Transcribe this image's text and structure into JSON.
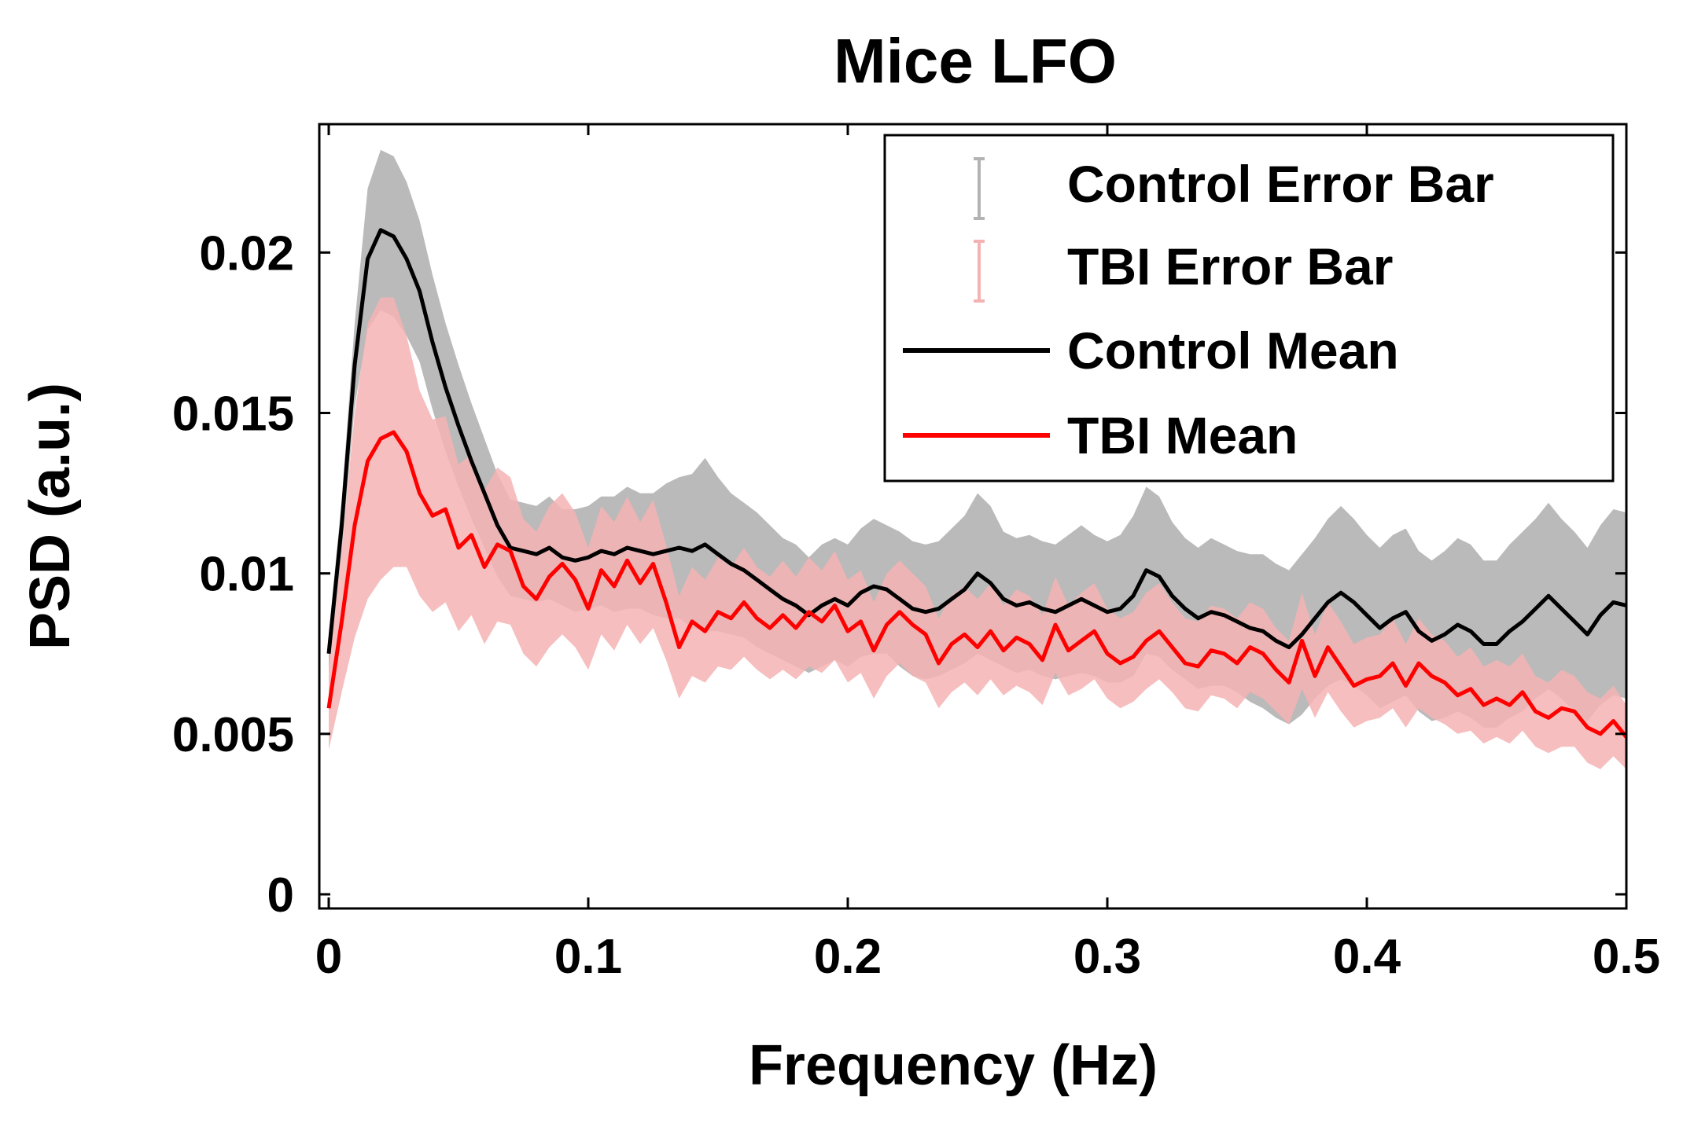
{
  "chart_data": {
    "type": "line",
    "title": "Mice LFO",
    "xlabel": "Frequency (Hz)",
    "ylabel": "PSD (a.u.)",
    "xlim": [
      0,
      0.5
    ],
    "ylim": [
      0,
      0.024
    ],
    "xticks": [
      {
        "value": 0,
        "label": "0"
      },
      {
        "value": 0.1,
        "label": "0.1"
      },
      {
        "value": 0.2,
        "label": "0.2"
      },
      {
        "value": 0.3,
        "label": "0.3"
      },
      {
        "value": 0.4,
        "label": "0.4"
      },
      {
        "value": 0.5,
        "label": "0.5"
      }
    ],
    "yticks": [
      {
        "value": 0,
        "label": "0"
      },
      {
        "value": 0.005,
        "label": "0.005"
      },
      {
        "value": 0.01,
        "label": "0.01"
      },
      {
        "value": 0.015,
        "label": "0.015"
      },
      {
        "value": 0.02,
        "label": "0.02"
      }
    ],
    "grid": false,
    "legend_position": "top-right",
    "legend": [
      {
        "label": "Control Error Bar",
        "kind": "errorbar",
        "color": "#b3b3b3"
      },
      {
        "label": "TBI Error Bar",
        "kind": "errorbar",
        "color": "#f4b3b3"
      },
      {
        "label": "Control Mean",
        "kind": "line",
        "color": "#000000"
      },
      {
        "label": "TBI Mean",
        "kind": "line",
        "color": "#ff0000"
      }
    ],
    "series": [
      {
        "name": "Control Mean",
        "color": "#000000",
        "band_color": "#b3b3b3",
        "x": [
          0,
          0.005,
          0.01,
          0.015,
          0.02,
          0.025,
          0.03,
          0.035,
          0.04,
          0.045,
          0.05,
          0.055,
          0.06,
          0.065,
          0.07,
          0.075,
          0.08,
          0.085,
          0.09,
          0.095,
          0.1,
          0.105,
          0.11,
          0.115,
          0.12,
          0.125,
          0.13,
          0.135,
          0.14,
          0.145,
          0.15,
          0.155,
          0.16,
          0.165,
          0.17,
          0.175,
          0.18,
          0.185,
          0.19,
          0.195,
          0.2,
          0.205,
          0.21,
          0.215,
          0.22,
          0.225,
          0.23,
          0.235,
          0.24,
          0.245,
          0.25,
          0.255,
          0.26,
          0.265,
          0.27,
          0.275,
          0.28,
          0.285,
          0.29,
          0.295,
          0.3,
          0.305,
          0.31,
          0.315,
          0.32,
          0.325,
          0.33,
          0.335,
          0.34,
          0.345,
          0.35,
          0.355,
          0.36,
          0.365,
          0.37,
          0.375,
          0.38,
          0.385,
          0.39,
          0.395,
          0.4,
          0.405,
          0.41,
          0.415,
          0.42,
          0.425,
          0.43,
          0.435,
          0.44,
          0.445,
          0.45,
          0.455,
          0.46,
          0.465,
          0.47,
          0.475,
          0.48,
          0.485,
          0.49,
          0.495,
          0.5
        ],
        "y": [
          0.0075,
          0.0115,
          0.0165,
          0.0198,
          0.0207,
          0.0205,
          0.0198,
          0.0188,
          0.0172,
          0.0158,
          0.0146,
          0.0135,
          0.0125,
          0.0115,
          0.0108,
          0.0107,
          0.0106,
          0.0108,
          0.0105,
          0.0104,
          0.0105,
          0.0107,
          0.0106,
          0.0108,
          0.0107,
          0.0106,
          0.0107,
          0.0108,
          0.0107,
          0.0109,
          0.0106,
          0.0103,
          0.0101,
          0.0098,
          0.0095,
          0.0092,
          0.009,
          0.0087,
          0.009,
          0.0092,
          0.009,
          0.0094,
          0.0096,
          0.0095,
          0.0092,
          0.0089,
          0.0088,
          0.0089,
          0.0092,
          0.0095,
          0.01,
          0.0097,
          0.0092,
          0.009,
          0.0091,
          0.0089,
          0.0088,
          0.009,
          0.0092,
          0.009,
          0.0088,
          0.0089,
          0.0093,
          0.0101,
          0.0099,
          0.0093,
          0.0089,
          0.0086,
          0.0088,
          0.0087,
          0.0085,
          0.0083,
          0.0082,
          0.0079,
          0.0077,
          0.0081,
          0.0086,
          0.0091,
          0.0094,
          0.0091,
          0.0087,
          0.0083,
          0.0086,
          0.0088,
          0.0082,
          0.0079,
          0.0081,
          0.0084,
          0.0082,
          0.0078,
          0.0078,
          0.0082,
          0.0085,
          0.0089,
          0.0093,
          0.0089,
          0.0085,
          0.0081,
          0.0087,
          0.0091,
          0.009
        ],
        "err": [
          0.0006,
          0.0008,
          0.0013,
          0.0022,
          0.0025,
          0.0025,
          0.0024,
          0.0022,
          0.0021,
          0.002,
          0.0019,
          0.0018,
          0.0017,
          0.0016,
          0.0015,
          0.0015,
          0.0015,
          0.0016,
          0.0015,
          0.0016,
          0.0016,
          0.0017,
          0.0018,
          0.0019,
          0.0018,
          0.0019,
          0.0021,
          0.0022,
          0.0024,
          0.0027,
          0.0024,
          0.0022,
          0.0021,
          0.0021,
          0.002,
          0.0019,
          0.0019,
          0.0018,
          0.0019,
          0.0019,
          0.0019,
          0.002,
          0.0021,
          0.002,
          0.0021,
          0.0021,
          0.0021,
          0.0021,
          0.0022,
          0.0023,
          0.0025,
          0.0024,
          0.0021,
          0.0021,
          0.0021,
          0.0021,
          0.0021,
          0.0022,
          0.0023,
          0.0022,
          0.0022,
          0.0023,
          0.0025,
          0.0026,
          0.0025,
          0.0023,
          0.0022,
          0.0022,
          0.0023,
          0.0022,
          0.0022,
          0.0023,
          0.0024,
          0.0024,
          0.0024,
          0.0025,
          0.0025,
          0.0026,
          0.0027,
          0.0026,
          0.0025,
          0.0025,
          0.0026,
          0.0026,
          0.0025,
          0.0025,
          0.0026,
          0.0027,
          0.0027,
          0.0026,
          0.0026,
          0.0027,
          0.0028,
          0.0028,
          0.0029,
          0.0028,
          0.0028,
          0.0027,
          0.0028,
          0.0029,
          0.0029
        ]
      },
      {
        "name": "TBI Mean",
        "color": "#ff0000",
        "band_color": "#f4b3b3",
        "x": [
          0,
          0.005,
          0.01,
          0.015,
          0.02,
          0.025,
          0.03,
          0.035,
          0.04,
          0.045,
          0.05,
          0.055,
          0.06,
          0.065,
          0.07,
          0.075,
          0.08,
          0.085,
          0.09,
          0.095,
          0.1,
          0.105,
          0.11,
          0.115,
          0.12,
          0.125,
          0.13,
          0.135,
          0.14,
          0.145,
          0.15,
          0.155,
          0.16,
          0.165,
          0.17,
          0.175,
          0.18,
          0.185,
          0.19,
          0.195,
          0.2,
          0.205,
          0.21,
          0.215,
          0.22,
          0.225,
          0.23,
          0.235,
          0.24,
          0.245,
          0.25,
          0.255,
          0.26,
          0.265,
          0.27,
          0.275,
          0.28,
          0.285,
          0.29,
          0.295,
          0.3,
          0.305,
          0.31,
          0.315,
          0.32,
          0.325,
          0.33,
          0.335,
          0.34,
          0.345,
          0.35,
          0.355,
          0.36,
          0.365,
          0.37,
          0.375,
          0.38,
          0.385,
          0.39,
          0.395,
          0.4,
          0.405,
          0.41,
          0.415,
          0.42,
          0.425,
          0.43,
          0.435,
          0.44,
          0.445,
          0.45,
          0.455,
          0.46,
          0.465,
          0.47,
          0.475,
          0.48,
          0.485,
          0.49,
          0.495,
          0.5
        ],
        "y": [
          0.0058,
          0.0085,
          0.0115,
          0.0135,
          0.0142,
          0.0144,
          0.0138,
          0.0125,
          0.0118,
          0.012,
          0.0108,
          0.0112,
          0.0102,
          0.0109,
          0.0107,
          0.0096,
          0.0092,
          0.0099,
          0.0103,
          0.0098,
          0.0089,
          0.0101,
          0.0096,
          0.0104,
          0.0097,
          0.0103,
          0.0091,
          0.0077,
          0.0085,
          0.0082,
          0.0088,
          0.0086,
          0.0091,
          0.0086,
          0.0083,
          0.0087,
          0.0083,
          0.0088,
          0.0085,
          0.009,
          0.0082,
          0.0085,
          0.0076,
          0.0084,
          0.0088,
          0.0084,
          0.0081,
          0.0072,
          0.0078,
          0.0081,
          0.0077,
          0.0082,
          0.0076,
          0.008,
          0.0078,
          0.0073,
          0.0084,
          0.0076,
          0.0079,
          0.0082,
          0.0075,
          0.0072,
          0.0074,
          0.0079,
          0.0082,
          0.0077,
          0.0072,
          0.0071,
          0.0076,
          0.0075,
          0.0072,
          0.0077,
          0.0075,
          0.007,
          0.0066,
          0.0079,
          0.0068,
          0.0077,
          0.0071,
          0.0065,
          0.0067,
          0.0068,
          0.0072,
          0.0065,
          0.0072,
          0.0068,
          0.0066,
          0.0062,
          0.0064,
          0.0059,
          0.0061,
          0.0059,
          0.0063,
          0.0057,
          0.0055,
          0.0058,
          0.0057,
          0.0052,
          0.005,
          0.0054,
          0.0049
        ],
        "err": [
          0.0013,
          0.0022,
          0.0035,
          0.0043,
          0.0044,
          0.0042,
          0.0036,
          0.0032,
          0.003,
          0.0029,
          0.0026,
          0.0025,
          0.0024,
          0.0024,
          0.0023,
          0.0021,
          0.0021,
          0.0022,
          0.0022,
          0.0021,
          0.0019,
          0.002,
          0.002,
          0.002,
          0.0019,
          0.002,
          0.0018,
          0.0016,
          0.0017,
          0.0016,
          0.0017,
          0.0016,
          0.0017,
          0.0016,
          0.0016,
          0.0017,
          0.0016,
          0.0017,
          0.0016,
          0.0017,
          0.0016,
          0.0016,
          0.0015,
          0.0016,
          0.0016,
          0.0016,
          0.0015,
          0.0014,
          0.0015,
          0.0015,
          0.0015,
          0.0015,
          0.0014,
          0.0015,
          0.0015,
          0.0014,
          0.0015,
          0.0014,
          0.0015,
          0.0015,
          0.0014,
          0.0014,
          0.0014,
          0.0015,
          0.0015,
          0.0014,
          0.0014,
          0.0014,
          0.0014,
          0.0014,
          0.0014,
          0.0014,
          0.0014,
          0.0013,
          0.0013,
          0.0015,
          0.0013,
          0.0014,
          0.0014,
          0.0013,
          0.0013,
          0.0013,
          0.0014,
          0.0013,
          0.0014,
          0.0013,
          0.0013,
          0.0012,
          0.0013,
          0.0012,
          0.0012,
          0.0012,
          0.0012,
          0.0011,
          0.0011,
          0.0012,
          0.0011,
          0.0011,
          0.0011,
          0.0011,
          0.001
        ]
      }
    ]
  }
}
